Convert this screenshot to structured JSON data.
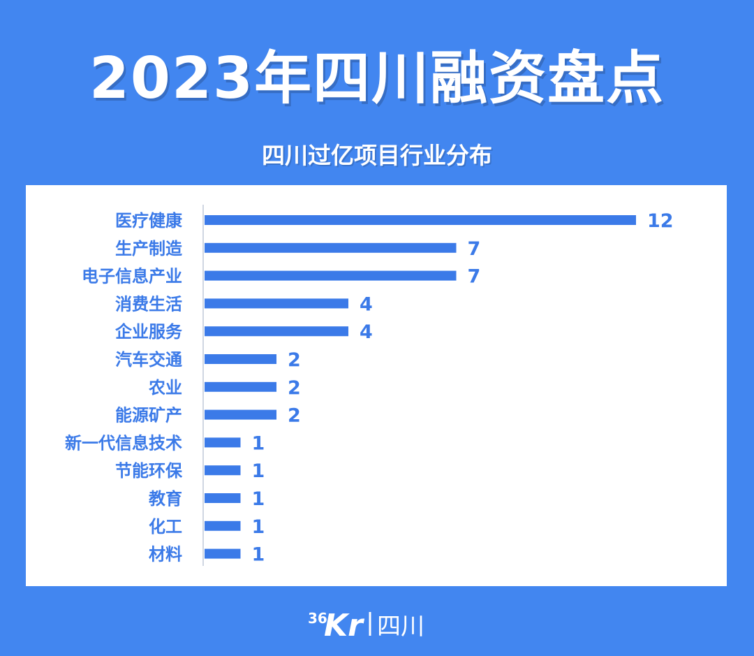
{
  "title": "2023年四川融资盘点",
  "footer": {
    "logo_number": "36",
    "logo_letters": "Kr",
    "logo_region": "四川"
  },
  "colors": {
    "background": "#4286f0",
    "bar": "#3b7ae8",
    "panel": "#ffffff"
  },
  "chart_data": {
    "type": "bar",
    "orientation": "horizontal",
    "title": "四川过亿项目行业分布",
    "categories": [
      "医疗健康",
      "生产制造",
      "电子信息产业",
      "消费生活",
      "企业服务",
      "汽车交通",
      "农业",
      "能源矿产",
      "新一代信息技术",
      "节能环保",
      "教育",
      "化工",
      "材料"
    ],
    "values": [
      12,
      7,
      7,
      4,
      4,
      2,
      2,
      2,
      1,
      1,
      1,
      1,
      1
    ],
    "xlim": [
      0,
      12
    ],
    "grid": false,
    "legend": "none",
    "data_labels": true
  }
}
